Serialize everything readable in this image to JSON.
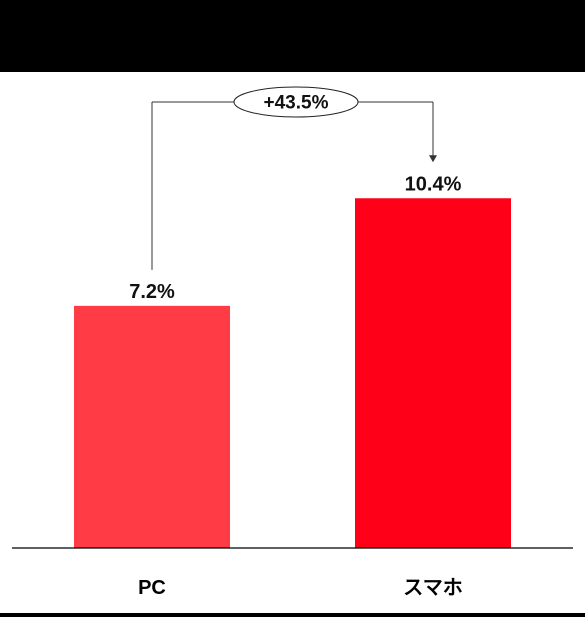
{
  "chart_data": {
    "type": "bar",
    "categories": [
      "PC",
      "スマホ"
    ],
    "values": [
      7.2,
      10.4
    ],
    "value_labels": [
      "7.2%",
      "10.4%"
    ],
    "title": "",
    "xlabel": "",
    "ylabel": "",
    "ylim": [
      0,
      13.5
    ],
    "grid": false,
    "legend": "none",
    "bar_colors": [
      "#ff3c46",
      "#ff0019"
    ],
    "annotation": {
      "text": "+43.5%",
      "from": "PC",
      "to": "スマホ"
    }
  },
  "colors": {
    "header_band": "#000000",
    "axis": "#000000",
    "connector": "#333333"
  }
}
